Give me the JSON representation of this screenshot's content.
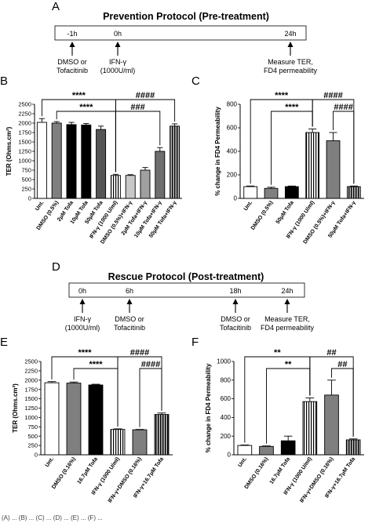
{
  "panel_A": {
    "letter": "A",
    "title": "Prevention Protocol (Pre-treatment)",
    "timeline": [
      {
        "time": "-1h",
        "label_lines": [
          "DMSO or",
          "Tofacitinib"
        ]
      },
      {
        "time": "0h",
        "label_lines": [
          "IFN-γ",
          "(1000U/ml)"
        ]
      },
      {
        "time": "24h",
        "label_lines": [
          "Measure TER,",
          "FD4 permeability"
        ]
      }
    ]
  },
  "panel_D": {
    "letter": "D",
    "title": "Rescue Protocol (Post-treatment)",
    "timeline": [
      {
        "time": "0h",
        "label_lines": [
          "IFN-γ",
          "(1000U/ml)"
        ]
      },
      {
        "time": "6h",
        "label_lines": [
          "DMSO or",
          "Tofacitinib"
        ]
      },
      {
        "time": "18h",
        "label_lines": [
          "DMSO or",
          "Tofacitinib"
        ]
      },
      {
        "time": "24h",
        "label_lines": [
          "Measure TER,",
          "FD4 permeability"
        ]
      }
    ]
  },
  "caption_fragment": "(A) ... (B) ... (C) ... (D) ... (E) ... (F) ...",
  "chart_data": [
    {
      "panel": "B",
      "type": "bar",
      "ylabel": "TER (Ohms.cm²)",
      "ylim": [
        0,
        2500
      ],
      "yticks": [
        0,
        250,
        500,
        750,
        1000,
        1250,
        1500,
        1750,
        2000,
        2250,
        2500
      ],
      "categories": [
        "Unt.",
        "DMSO (0.5%)",
        "2μM Tofa",
        "10μM Tofa",
        "50μM Tofa",
        "IFN-γ (1000 U/ml)",
        "DMSO (0.5%)+IFN-γ",
        "2μM Tofa+IFN-γ",
        "10μM Tofa+IFN-γ",
        "50μM Tofa+IFN-γ"
      ],
      "values": [
        2020,
        2000,
        1960,
        1950,
        1830,
        610,
        610,
        750,
        1250,
        1920
      ],
      "errors": [
        100,
        40,
        60,
        40,
        90,
        30,
        20,
        70,
        100,
        60
      ],
      "fills": [
        "#ffffff",
        "#7f7f7f",
        "#000000",
        "#000000",
        "#555555",
        "vstripe",
        "#c8c8c8",
        "#a0a0a0",
        "#6e6e6e",
        "vstripe-dark"
      ],
      "significance": [
        {
          "label": "****",
          "from": 0,
          "to": 5
        },
        {
          "label": "****",
          "from": 1,
          "to": 5
        },
        {
          "label": "####",
          "from": 5,
          "to": 9
        },
        {
          "label": "###",
          "from": 5,
          "to": 8
        }
      ]
    },
    {
      "panel": "C",
      "type": "bar",
      "ylabel": "% change in FD4 Permeability",
      "ylim": [
        0,
        800
      ],
      "yticks": [
        0,
        200,
        400,
        600,
        800
      ],
      "categories": [
        "Unt.",
        "DMSO (0.5%)",
        "50μM Tofa",
        "IFN-γ (1000 U/ml)",
        "DMSO (0.5%)+IFN-γ",
        "50μM Tofa+IFN-γ"
      ],
      "values": [
        100,
        85,
        100,
        560,
        490,
        100
      ],
      "errors": [
        5,
        10,
        5,
        30,
        70,
        5
      ],
      "fills": [
        "#ffffff",
        "#7f7f7f",
        "#000000",
        "vstripe",
        "#7f7f7f",
        "vstripe-dark"
      ],
      "significance": [
        {
          "label": "****",
          "from": 0,
          "to": 3
        },
        {
          "label": "****",
          "from": 1,
          "to": 3
        },
        {
          "label": "####",
          "from": 3,
          "to": 5
        },
        {
          "label": "####",
          "from": 4,
          "to": 5
        }
      ]
    },
    {
      "panel": "E",
      "type": "bar",
      "ylabel": "TER (Ohms.cm²)",
      "ylim": [
        0,
        2500
      ],
      "yticks": [
        0,
        250,
        500,
        750,
        1000,
        1250,
        1500,
        1750,
        2000,
        2250,
        2500
      ],
      "categories": [
        "Unt.",
        "DMSO (0.16%)",
        "16.7μM Tofa",
        "IFN-γ (1000 U/ml)",
        "IFN-γ+DMSO (0.16%)",
        "IFN-γ+16.7μM Tofa"
      ],
      "values": [
        1930,
        1920,
        1870,
        680,
        670,
        1080
      ],
      "errors": [
        30,
        30,
        20,
        15,
        10,
        40
      ],
      "fills": [
        "#ffffff",
        "#7f7f7f",
        "#000000",
        "vstripe",
        "#7f7f7f",
        "vstripe-dark"
      ],
      "significance": [
        {
          "label": "****",
          "from": 0,
          "to": 3
        },
        {
          "label": "****",
          "from": 1,
          "to": 3
        },
        {
          "label": "####",
          "from": 3,
          "to": 5
        },
        {
          "label": "####",
          "from": 4,
          "to": 5
        }
      ]
    },
    {
      "panel": "F",
      "type": "bar",
      "ylabel": "% change in FD4 Permeability",
      "ylim": [
        0,
        1000
      ],
      "yticks": [
        0,
        200,
        400,
        600,
        800,
        1000
      ],
      "categories": [
        "Unt.",
        "DMSO (0.16%)",
        "16.7μM Tofa",
        "IFN-γ (1000 U/ml)",
        "IFN-γ+DMSO (0.16%)",
        "IFN-γ+16.7μM Tofa"
      ],
      "values": [
        100,
        90,
        150,
        570,
        640,
        160
      ],
      "errors": [
        5,
        5,
        50,
        40,
        160,
        10
      ],
      "fills": [
        "#ffffff",
        "#7f7f7f",
        "#000000",
        "vstripe",
        "#7f7f7f",
        "vstripe-dark"
      ],
      "significance": [
        {
          "label": "**",
          "from": 0,
          "to": 3
        },
        {
          "label": "**",
          "from": 1,
          "to": 3
        },
        {
          "label": "##",
          "from": 3,
          "to": 5
        },
        {
          "label": "##",
          "from": 4,
          "to": 5
        }
      ]
    }
  ],
  "panel_letters": {
    "B": "B",
    "C": "C",
    "E": "E",
    "F": "F"
  }
}
